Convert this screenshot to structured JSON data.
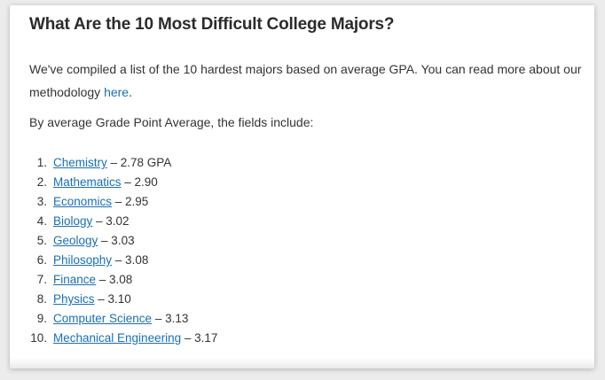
{
  "article": {
    "title": "What Are the 10 Most Difficult College Majors?",
    "intro_text": "We've compiled a list of the 10 hardest majors based on average GPA. You can read more about our methodology ",
    "intro_link": "here",
    "intro_end": ".",
    "lead": "By average Grade Point Average, the fields include:"
  },
  "majors": [
    {
      "num": "1.",
      "name": "Chemistry",
      "value": " – 2.78 GPA"
    },
    {
      "num": "2.",
      "name": "Mathematics",
      "value": " – 2.90"
    },
    {
      "num": "3.",
      "name": "Economics",
      "value": " – 2.95"
    },
    {
      "num": "4.",
      "name": "Biology",
      "value": " – 3.02"
    },
    {
      "num": "5.",
      "name": "Geology",
      "value": " – 3.03"
    },
    {
      "num": "6.",
      "name": "Philosophy",
      "value": " – 3.08"
    },
    {
      "num": "7.",
      "name": "Finance",
      "value": " – 3.08"
    },
    {
      "num": "8.",
      "name": "Physics",
      "value": " – 3.10"
    },
    {
      "num": "9.",
      "name": "Computer Science",
      "value": " – 3.13"
    },
    {
      "num": "10.",
      "name": "Mechanical Engineering",
      "value": " – 3.17"
    }
  ]
}
